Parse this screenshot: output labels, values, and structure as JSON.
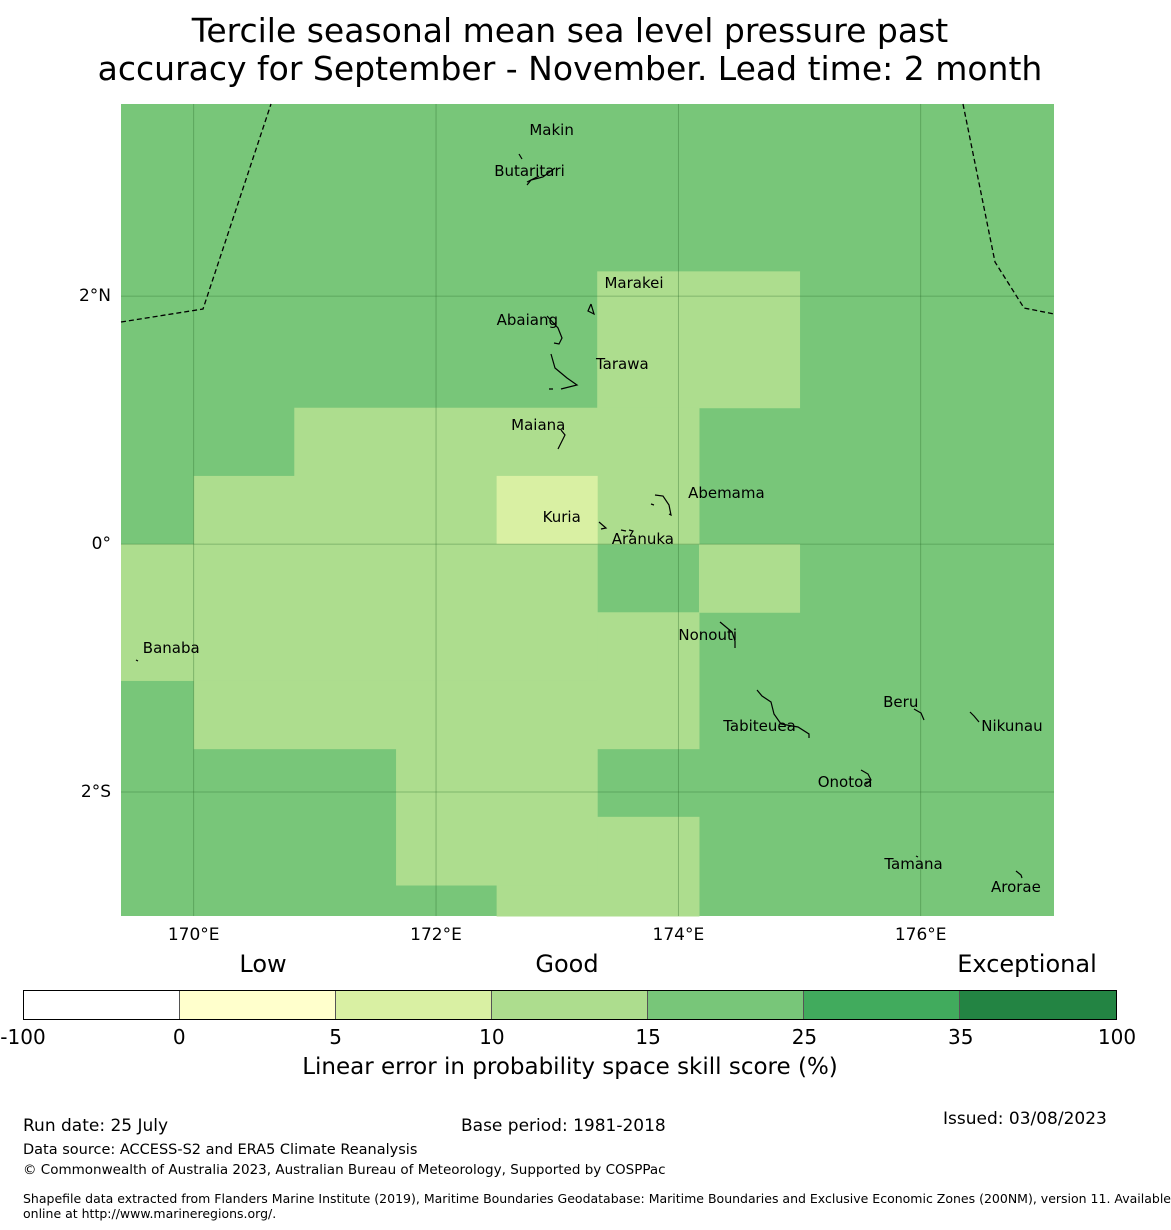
{
  "title": {
    "line1": "Tercile seasonal mean sea level pressure past",
    "line2": "accuracy for September - November. Lead time: 2 month"
  },
  "map": {
    "lon_range": [
      169.4,
      177.1
    ],
    "lat_range": [
      -3.0,
      3.55
    ],
    "lat_ticks": [
      {
        "value": 2,
        "label": "2°N"
      },
      {
        "value": 0,
        "label": "0°"
      },
      {
        "value": -2,
        "label": "2°S"
      }
    ],
    "lon_ticks": [
      {
        "value": 170,
        "label": "170°E"
      },
      {
        "value": 172,
        "label": "172°E"
      },
      {
        "value": 174,
        "label": "174°E"
      },
      {
        "value": 176,
        "label": "176°E"
      }
    ],
    "background_category": "15-25",
    "category_colors": {
      "-100-0": "#ffffff",
      "0-5": "#ffffcc",
      "5-10": "#d9f0a3",
      "10-15": "#addd8e",
      "15-25": "#78c679",
      "25-35": "#41ab5d",
      "35-100": "#238443"
    },
    "skill_cells": [
      {
        "lon": [
          173.33,
          175.0
        ],
        "lat": [
          1.1,
          2.2
        ],
        "category": "10-15"
      },
      {
        "lon": [
          170.83,
          174.17
        ],
        "lat": [
          0.55,
          1.1
        ],
        "category": "10-15"
      },
      {
        "lon": [
          170.0,
          172.5
        ],
        "lat": [
          0.0,
          0.55
        ],
        "category": "10-15"
      },
      {
        "lon": [
          173.33,
          174.17
        ],
        "lat": [
          0.0,
          0.55
        ],
        "category": "10-15"
      },
      {
        "lon": [
          172.5,
          173.33
        ],
        "lat": [
          0.0,
          0.55
        ],
        "category": "5-10"
      },
      {
        "lon": [
          169.4,
          173.33
        ],
        "lat": [
          -1.1,
          0.0
        ],
        "category": "10-15"
      },
      {
        "lon": [
          174.17,
          175.0
        ],
        "lat": [
          -0.55,
          0.0
        ],
        "category": "10-15"
      },
      {
        "lon": [
          173.33,
          174.17
        ],
        "lat": [
          -1.65,
          -0.55
        ],
        "category": "10-15"
      },
      {
        "lon": [
          170.0,
          173.33
        ],
        "lat": [
          -1.65,
          -1.1
        ],
        "category": "10-15"
      },
      {
        "lon": [
          171.67,
          173.33
        ],
        "lat": [
          -2.75,
          -1.65
        ],
        "category": "10-15"
      },
      {
        "lon": [
          172.5,
          174.17
        ],
        "lat": [
          -3.0,
          -2.75
        ],
        "category": "10-15"
      },
      {
        "lon": [
          173.33,
          174.17
        ],
        "lat": [
          -2.75,
          -2.2
        ],
        "category": "10-15"
      }
    ],
    "places": [
      {
        "name": "Makin",
        "lon": 172.77,
        "lat": 3.34
      },
      {
        "name": "Butaritari",
        "lon": 172.48,
        "lat": 3.01
      },
      {
        "name": "Marakei",
        "lon": 173.39,
        "lat": 2.11
      },
      {
        "name": "Abaiang",
        "lon": 172.5,
        "lat": 1.81
      },
      {
        "name": "Tarawa",
        "lon": 173.32,
        "lat": 1.45
      },
      {
        "name": "Maiana",
        "lon": 172.62,
        "lat": 0.96
      },
      {
        "name": "Abemama",
        "lon": 174.08,
        "lat": 0.41
      },
      {
        "name": "Kuria",
        "lon": 172.88,
        "lat": 0.22
      },
      {
        "name": "Aranuka",
        "lon": 173.45,
        "lat": 0.04
      },
      {
        "name": "Nonouti",
        "lon": 174.0,
        "lat": -0.73
      },
      {
        "name": "Banaba",
        "lon": 169.58,
        "lat": -0.84
      },
      {
        "name": "Beru",
        "lon": 175.69,
        "lat": -1.27
      },
      {
        "name": "Tabiteuea",
        "lon": 174.37,
        "lat": -1.47
      },
      {
        "name": "Nikunau",
        "lon": 176.5,
        "lat": -1.47
      },
      {
        "name": "Onotoa",
        "lon": 175.15,
        "lat": -1.92
      },
      {
        "name": "Tamana",
        "lon": 175.7,
        "lat": -2.58
      },
      {
        "name": "Arorae",
        "lon": 176.58,
        "lat": -2.77
      }
    ]
  },
  "legend": {
    "category_labels": [
      "Low",
      "Good",
      "Exceptional"
    ],
    "ticks": [
      "-100",
      "0",
      "5",
      "10",
      "15",
      "25",
      "35",
      "100"
    ],
    "colors": [
      "#ffffff",
      "#ffffcc",
      "#d9f0a3",
      "#addd8e",
      "#78c679",
      "#41ab5d",
      "#238443"
    ],
    "label": "Linear error in probability space skill score (%)"
  },
  "footer": {
    "run_date": "Run date: 25 July",
    "base_period": "Base period: 1981-2018",
    "issued": "Issued: 03/08/2023",
    "data_source": "Data source: ACCESS-S2 and ERA5 Climate Reanalysis",
    "copyright": "© Commonwealth of Australia 2023, Australian Bureau of Meteorology, Supported by COSPPac",
    "shapefile_line1": "Shapefile data extracted from Flanders Marine Institute (2019), Maritime Boundaries Geodatabase: Maritime Boundaries and Exclusive Economic Zones (200NM), version 11. Available",
    "shapefile_line2": "online at http://www.marineregions.org/."
  }
}
